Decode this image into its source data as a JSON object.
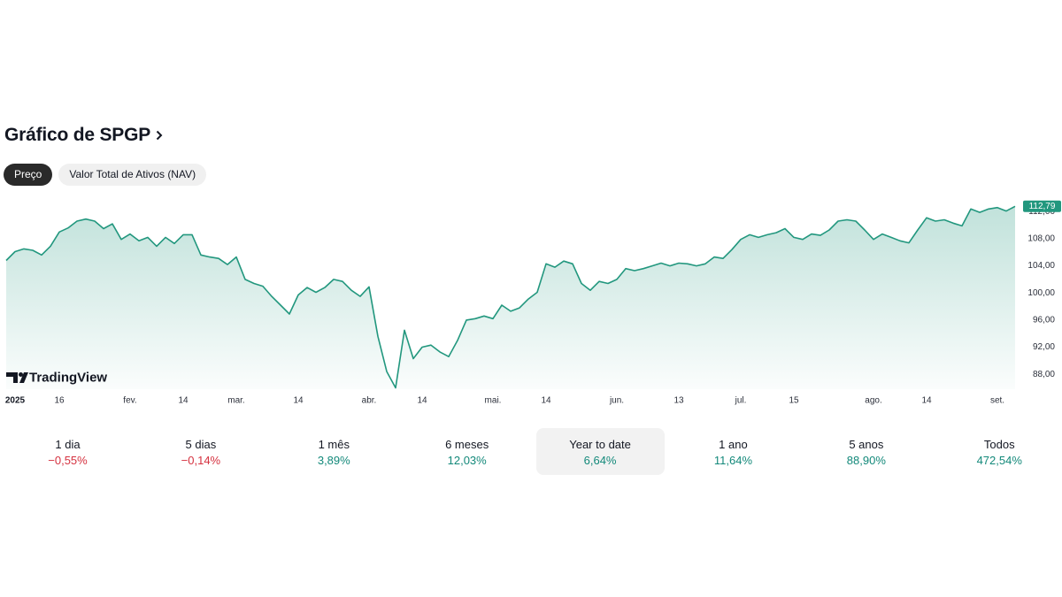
{
  "header": {
    "title": "Gráfico de SPGP"
  },
  "tabs": [
    {
      "label": "Preço",
      "active": true
    },
    {
      "label": "Valor Total de Ativos (NAV)",
      "active": false
    }
  ],
  "chart_data": {
    "type": "line",
    "watermark": "TradingView",
    "color": "#22977e",
    "grid": false,
    "values": [
      104.8,
      106.1,
      106.5,
      106.3,
      105.6,
      106.9,
      109.0,
      109.6,
      110.6,
      110.9,
      110.6,
      109.5,
      110.2,
      107.9,
      108.7,
      107.7,
      108.2,
      106.9,
      108.2,
      107.3,
      108.6,
      108.6,
      105.6,
      105.3,
      105.1,
      104.2,
      105.3,
      102.0,
      101.4,
      101.0,
      99.5,
      98.2,
      96.9,
      99.7,
      100.8,
      100.1,
      100.8,
      102.0,
      101.7,
      100.4,
      99.5,
      100.9,
      93.6,
      88.4,
      86.0,
      94.5,
      90.3,
      92.0,
      92.3,
      91.3,
      90.6,
      93.0,
      96.0,
      96.2,
      96.6,
      96.2,
      98.2,
      97.3,
      97.8,
      99.1,
      100.1,
      104.3,
      103.8,
      104.7,
      104.3,
      101.4,
      100.4,
      101.7,
      101.4,
      102.0,
      103.6,
      103.3,
      103.6,
      104.0,
      104.4,
      104.0,
      104.4,
      104.3,
      104.0,
      104.3,
      105.3,
      105.1,
      106.4,
      107.9,
      108.6,
      108.2,
      108.6,
      108.9,
      109.5,
      108.2,
      107.9,
      108.7,
      108.5,
      109.3,
      110.6,
      110.8,
      110.6,
      109.3,
      107.9,
      108.7,
      108.2,
      107.7,
      107.4,
      109.3,
      111.1,
      110.6,
      110.8,
      110.3,
      109.9,
      112.4,
      111.9,
      112.4,
      112.6,
      112.1,
      112.79
    ],
    "last_label": "112,79",
    "xlim": [
      0,
      114
    ],
    "xticks": [
      {
        "value": 1,
        "label": "2025"
      },
      {
        "value": 6,
        "label": "16"
      },
      {
        "value": 14,
        "label": "fev."
      },
      {
        "value": 20,
        "label": "14"
      },
      {
        "value": 26,
        "label": "mar."
      },
      {
        "value": 33,
        "label": "14"
      },
      {
        "value": 41,
        "label": "abr."
      },
      {
        "value": 47,
        "label": "14"
      },
      {
        "value": 55,
        "label": "mai."
      },
      {
        "value": 61,
        "label": "14"
      },
      {
        "value": 69,
        "label": "jun."
      },
      {
        "value": 76,
        "label": "13"
      },
      {
        "value": 83,
        "label": "jul."
      },
      {
        "value": 89,
        "label": "15"
      },
      {
        "value": 98,
        "label": "ago."
      },
      {
        "value": 104,
        "label": "14"
      },
      {
        "value": 112,
        "label": "set."
      }
    ],
    "ylim": [
      85.8,
      114
    ],
    "yticks": [
      {
        "value": 88,
        "label": "88,00"
      },
      {
        "value": 92,
        "label": "92,00"
      },
      {
        "value": 96,
        "label": "96,00"
      },
      {
        "value": 100,
        "label": "100,00"
      },
      {
        "value": 104,
        "label": "104,00"
      },
      {
        "value": 108,
        "label": "108,00"
      },
      {
        "value": 112,
        "label": "112,00"
      }
    ]
  },
  "periods": [
    {
      "label": "1 dia",
      "change": "−0,55%",
      "color": "#d5313f",
      "selected": false
    },
    {
      "label": "5 dias",
      "change": "−0,14%",
      "color": "#d5313f",
      "selected": false
    },
    {
      "label": "1 mês",
      "change": "3,89%",
      "color": "#13897a",
      "selected": false
    },
    {
      "label": "6 meses",
      "change": "12,03%",
      "color": "#13897a",
      "selected": false
    },
    {
      "label": "Year to date",
      "change": "6,64%",
      "color": "#13897a",
      "selected": true
    },
    {
      "label": "1 ano",
      "change": "11,64%",
      "color": "#13897a",
      "selected": false
    },
    {
      "label": "5 anos",
      "change": "88,90%",
      "color": "#13897a",
      "selected": false
    },
    {
      "label": "Todos",
      "change": "472,54%",
      "color": "#13897a",
      "selected": false
    }
  ]
}
